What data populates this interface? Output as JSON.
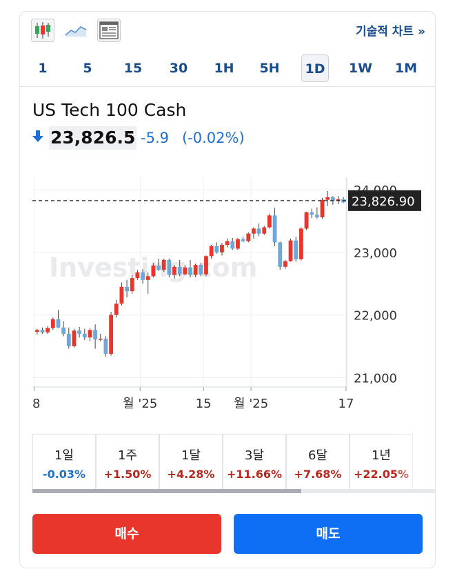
{
  "toolbar": {
    "icons": [
      "candlestick-chart-icon",
      "line-chart-icon",
      "table-icon"
    ],
    "technical_chart_label": "기술적 차트 »"
  },
  "periods": [
    "1",
    "5",
    "15",
    "30",
    "1H",
    "5H",
    "1D",
    "1W",
    "1M"
  ],
  "active_period": "1D",
  "instrument": {
    "name": "US Tech 100 Cash",
    "price": "23,826.5",
    "change": "-5.9",
    "change_pct": "(-0.02%)",
    "direction_icon": "down-arrow-icon"
  },
  "colors": {
    "up": "#e8362d",
    "down": "#6ea7d8",
    "link": "#1b4d8c",
    "negative": "#1e6fcf",
    "positive": "#b5281f"
  },
  "chart_data": {
    "type": "candlestick",
    "watermark": "Investing.com",
    "y_ticks": [
      21000,
      22000,
      23000,
      24000
    ],
    "y_tick_labels": [
      "21,000",
      "22,000",
      "23,000",
      "24,000"
    ],
    "ylim": [
      20850,
      24200
    ],
    "current_value_label": "23,826.90",
    "current_value": 23826.9,
    "x_tick_labels": [
      "8",
      "월 '25",
      "15",
      "월 '25",
      "17"
    ],
    "x_tick_positions": [
      0,
      20,
      32,
      41,
      59
    ],
    "candles": [
      [
        21730,
        21780,
        21690,
        21760
      ],
      [
        21760,
        21800,
        21700,
        21720
      ],
      [
        21720,
        21820,
        21700,
        21790
      ],
      [
        21790,
        21960,
        21760,
        21930
      ],
      [
        21930,
        22080,
        21790,
        21800
      ],
      [
        21800,
        21900,
        21660,
        21700
      ],
      [
        21700,
        21800,
        21460,
        21500
      ],
      [
        21500,
        21780,
        21480,
        21750
      ],
      [
        21750,
        21810,
        21640,
        21700
      ],
      [
        21700,
        21780,
        21600,
        21640
      ],
      [
        21640,
        21790,
        21580,
        21760
      ],
      [
        21760,
        21850,
        21460,
        21610
      ],
      [
        21610,
        21700,
        21580,
        21620
      ],
      [
        21620,
        21660,
        21330,
        21380
      ],
      [
        21380,
        22050,
        21350,
        22000
      ],
      [
        22000,
        22240,
        21960,
        22180
      ],
      [
        22180,
        22520,
        22150,
        22450
      ],
      [
        22450,
        22560,
        22280,
        22380
      ],
      [
        22380,
        22640,
        22340,
        22590
      ],
      [
        22590,
        22720,
        22560,
        22680
      ],
      [
        22680,
        22730,
        22500,
        22560
      ],
      [
        22560,
        22680,
        22340,
        22620
      ],
      [
        22620,
        22830,
        22600,
        22790
      ],
      [
        22790,
        22900,
        22700,
        22720
      ],
      [
        22720,
        22900,
        22690,
        22880
      ],
      [
        22880,
        22900,
        22600,
        22640
      ],
      [
        22640,
        22800,
        22580,
        22770
      ],
      [
        22770,
        22880,
        22620,
        22650
      ],
      [
        22650,
        22800,
        22630,
        22760
      ],
      [
        22760,
        22880,
        22600,
        22640
      ],
      [
        22640,
        22820,
        22600,
        22800
      ],
      [
        22800,
        22830,
        22620,
        22650
      ],
      [
        22650,
        22950,
        22620,
        22940
      ],
      [
        22940,
        23120,
        22900,
        23100
      ],
      [
        23100,
        23160,
        22980,
        23000
      ],
      [
        23000,
        23150,
        22950,
        23120
      ],
      [
        23120,
        23220,
        23080,
        23180
      ],
      [
        23180,
        23230,
        23040,
        23060
      ],
      [
        23060,
        23230,
        23040,
        23210
      ],
      [
        23210,
        23250,
        23160,
        23180
      ],
      [
        23180,
        23320,
        23160,
        23300
      ],
      [
        23300,
        23400,
        23220,
        23380
      ],
      [
        23380,
        23460,
        23260,
        23300
      ],
      [
        23300,
        23420,
        23280,
        23400
      ],
      [
        23400,
        23620,
        23380,
        23590
      ],
      [
        23590,
        23710,
        23100,
        23160
      ],
      [
        23160,
        23170,
        22720,
        22770
      ],
      [
        22770,
        22880,
        22740,
        22860
      ],
      [
        22860,
        23220,
        22850,
        23190
      ],
      [
        23190,
        23250,
        22850,
        22890
      ],
      [
        22890,
        23400,
        22870,
        23380
      ],
      [
        23380,
        23650,
        23360,
        23640
      ],
      [
        23640,
        23700,
        23550,
        23600
      ],
      [
        23600,
        23720,
        23540,
        23560
      ],
      [
        23560,
        23870,
        23540,
        23840
      ],
      [
        23840,
        23980,
        23740,
        23880
      ],
      [
        23880,
        23900,
        23760,
        23820
      ],
      [
        23820,
        23900,
        23770,
        23850
      ],
      [
        23850,
        23880,
        23790,
        23800
      ]
    ]
  },
  "performance": [
    {
      "label": "1일",
      "value": "-0.03%",
      "dir": "down"
    },
    {
      "label": "1주",
      "value": "+1.50%",
      "dir": "up"
    },
    {
      "label": "1달",
      "value": "+4.28%",
      "dir": "up"
    },
    {
      "label": "3달",
      "value": "+11.66%",
      "dir": "up"
    },
    {
      "label": "6달",
      "value": "+7.68%",
      "dir": "up"
    },
    {
      "label": "1년",
      "value": "+22.05%",
      "dir": "up"
    }
  ],
  "actions": {
    "buy_label": "매수",
    "sell_label": "매도"
  }
}
